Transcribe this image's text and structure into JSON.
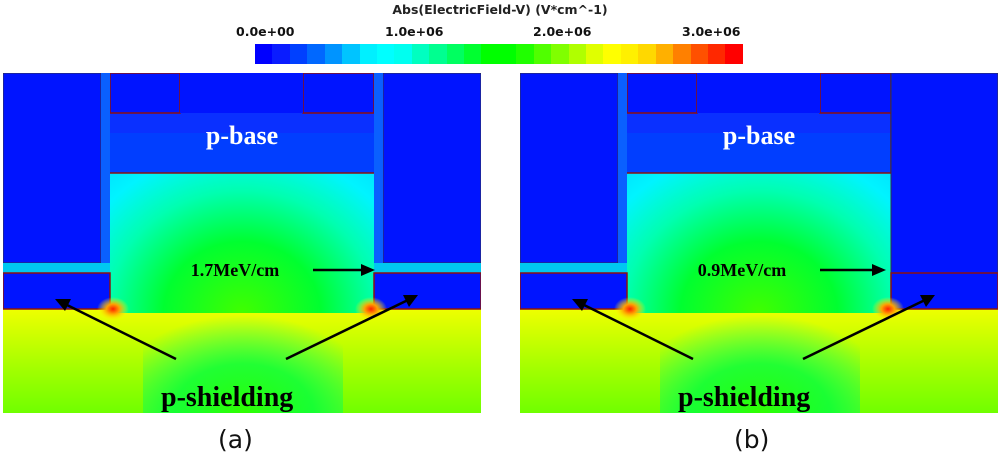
{
  "colorbar": {
    "title": "Abs(ElectricField-V) (V*cm^-1)",
    "ticks": [
      "0.0e+00",
      "1.0e+06",
      "2.0e+06",
      "3.0e+06"
    ],
    "colors": [
      "#0000ff",
      "#0a1cff",
      "#0040ff",
      "#0068ff",
      "#0094ff",
      "#00c4ff",
      "#00f0ff",
      "#00ffff",
      "#00fff0",
      "#00ffc0",
      "#00ff90",
      "#00ff60",
      "#00ff30",
      "#00ff00",
      "#00ff00",
      "#20ff00",
      "#50ff00",
      "#80ff00",
      "#b0ff00",
      "#e0ff00",
      "#ffff00",
      "#fff000",
      "#ffd800",
      "#ffb000",
      "#ff8000",
      "#ff5000",
      "#ff2800",
      "#ff0000"
    ]
  },
  "chart_data": {
    "type": "heatmap",
    "title": "Abs(ElectricField-V) (V*cm^-1)",
    "colorbar_range": [
      0,
      3000000
    ],
    "colorbar_ticks": [
      0,
      1000000,
      2000000,
      3000000
    ],
    "colorbar_tick_labels": [
      "0.0e+00",
      "1.0e+06",
      "2.0e+06",
      "3.0e+06"
    ],
    "panels": [
      {
        "caption": "(a)",
        "labels": [
          "p-base",
          "1.7MeV/cm",
          "p-shielding"
        ],
        "gate_oxide_peak_field_MV_per_cm": 1.7
      },
      {
        "caption": "(b)",
        "labels": [
          "p-base",
          "0.9MeV/cm",
          "p-shielding"
        ],
        "gate_oxide_peak_field_MV_per_cm": 0.9
      }
    ]
  },
  "panels": {
    "a": {
      "caption": "(a)",
      "region_label": "p-base",
      "field_label": "1.7MeV/cm",
      "shield_label": "p-shielding"
    },
    "b": {
      "caption": "(b)",
      "region_label": "p-base",
      "field_label": "0.9MeV/cm",
      "shield_label": "p-shielding"
    }
  }
}
